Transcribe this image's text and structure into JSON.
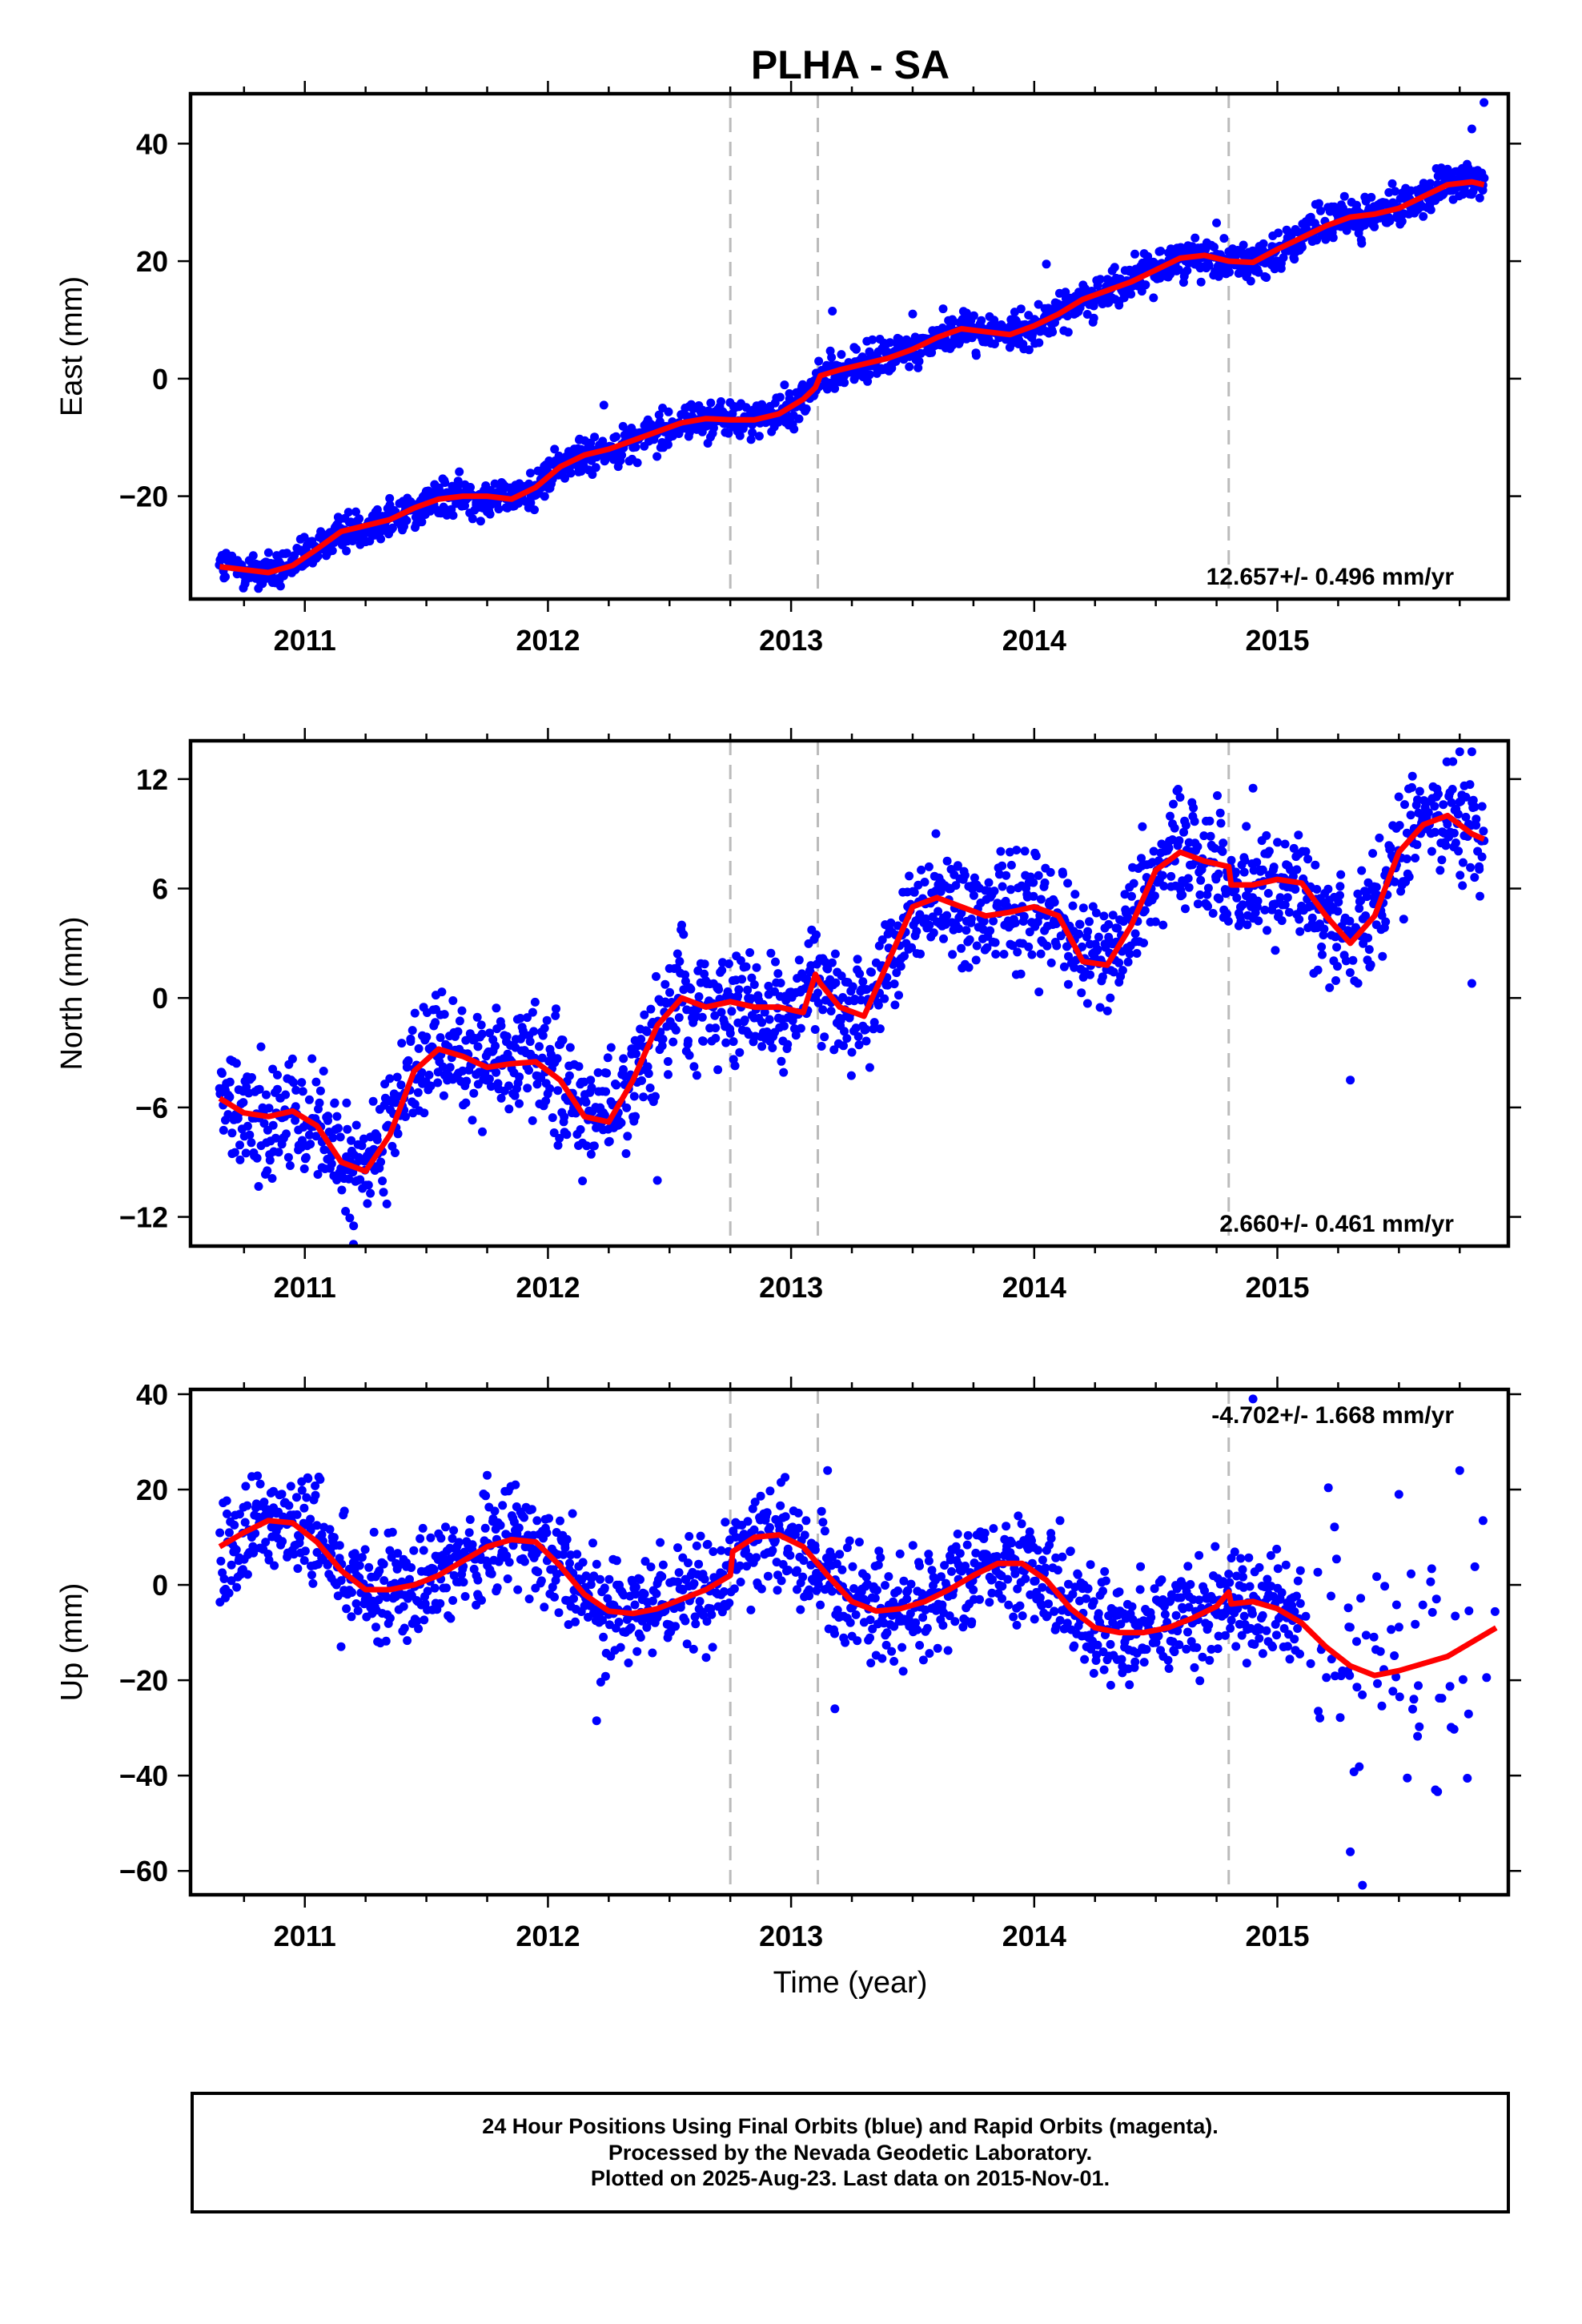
{
  "title": "PLHA - SA",
  "xlabel": "Time (year)",
  "colors": {
    "points": "#0000ff",
    "fit": "#ff0000",
    "events": "#bbbbbb",
    "frame": "#000000"
  },
  "footer": {
    "line1": "24 Hour Positions Using Final Orbits (blue) and Rapid Orbits (magenta).",
    "line2": "Processed by the Nevada Geodetic Laboratory.",
    "line3": "Plotted on 2025-Aug-23. Last data on 2015-Nov-01."
  },
  "chart_data": [
    {
      "type": "scatter",
      "ylabel": "East (mm)",
      "rate_text": "12.657+/- 0.496 mm/yr",
      "xlim": [
        2010.53,
        2015.95
      ],
      "ylim": [
        -37.5,
        48.5
      ],
      "xticks": [
        2011,
        2012,
        2013,
        2014,
        2015
      ],
      "xtick_labels": [
        "2011",
        "2012",
        "2013",
        "2014",
        "2015"
      ],
      "yticks": [
        -20,
        0,
        20,
        40
      ],
      "ytick_labels": [
        "−20",
        "0",
        "20",
        "40"
      ],
      "event_lines": [
        2012.75,
        2013.11,
        2014.8
      ],
      "noise_sd": 1.6,
      "fit": {
        "series": "fit",
        "x": [
          2010.65,
          2010.75,
          2010.85,
          2010.95,
          2011.05,
          2011.15,
          2011.25,
          2011.35,
          2011.45,
          2011.55,
          2011.65,
          2011.75,
          2011.85,
          2011.95,
          2012.05,
          2012.15,
          2012.25,
          2012.35,
          2012.45,
          2012.55,
          2012.65,
          2012.75,
          2012.85,
          2012.95,
          2013.05,
          2013.1,
          2013.12,
          2013.2,
          2013.3,
          2013.4,
          2013.5,
          2013.6,
          2013.7,
          2013.8,
          2013.9,
          2014.0,
          2014.1,
          2014.2,
          2014.3,
          2014.4,
          2014.5,
          2014.6,
          2014.7,
          2014.8,
          2014.9,
          2015.0,
          2015.1,
          2015.2,
          2015.3,
          2015.4,
          2015.5,
          2015.6,
          2015.7,
          2015.8,
          2015.85
        ],
        "y": [
          -32,
          -32.5,
          -33,
          -31.8,
          -29,
          -26,
          -25,
          -24,
          -22,
          -20.5,
          -20,
          -20,
          -20.5,
          -18.5,
          -15,
          -13,
          -12,
          -10.5,
          -9,
          -7.5,
          -6.8,
          -7,
          -7,
          -6,
          -3.5,
          -1.5,
          0.5,
          1.5,
          2.5,
          3.5,
          5,
          7,
          8.5,
          8,
          7.5,
          9,
          11,
          13.5,
          15,
          16.5,
          18.5,
          20.5,
          21,
          20,
          19.8,
          22,
          24,
          26,
          27.5,
          28,
          29,
          31,
          33,
          33.5,
          33
        ]
      },
      "samples": [
        [
          2010.9,
          -35.3
        ],
        [
          2011.35,
          -21.5
        ],
        [
          2012.23,
          -4.5
        ],
        [
          2013.17,
          11.5
        ],
        [
          2013.5,
          11.0
        ],
        [
          2014.05,
          19.5
        ],
        [
          2014.5,
          19.5
        ],
        [
          2014.75,
          26.5
        ],
        [
          2015.8,
          42.5
        ],
        [
          2015.85,
          47.0
        ]
      ]
    },
    {
      "type": "scatter",
      "ylabel": "North (mm)",
      "rate_text": "2.660+/- 0.461 mm/yr",
      "xlim": [
        2010.53,
        2015.95
      ],
      "ylim": [
        -13.6,
        14.1
      ],
      "xticks": [
        2011,
        2012,
        2013,
        2014,
        2015
      ],
      "xtick_labels": [
        "2011",
        "2012",
        "2013",
        "2014",
        "2015"
      ],
      "yticks": [
        -12,
        -6,
        0,
        6,
        12
      ],
      "ytick_labels": [
        "−12",
        "−6",
        "0",
        "6",
        "12"
      ],
      "event_lines": [
        2012.75,
        2013.11,
        2014.8
      ],
      "noise_sd": 1.5,
      "fit": {
        "series": "fit",
        "x": [
          2010.65,
          2010.75,
          2010.85,
          2010.95,
          2011.05,
          2011.15,
          2011.25,
          2011.35,
          2011.45,
          2011.55,
          2011.65,
          2011.75,
          2011.85,
          2011.95,
          2012.05,
          2012.15,
          2012.25,
          2012.35,
          2012.45,
          2012.55,
          2012.65,
          2012.75,
          2012.85,
          2012.95,
          2013.05,
          2013.1,
          2013.12,
          2013.2,
          2013.3,
          2013.4,
          2013.5,
          2013.6,
          2013.7,
          2013.8,
          2013.9,
          2014.0,
          2014.1,
          2014.2,
          2014.3,
          2014.4,
          2014.5,
          2014.6,
          2014.7,
          2014.8,
          2014.81,
          2014.9,
          2015.0,
          2015.1,
          2015.2,
          2015.3,
          2015.4,
          2015.5,
          2015.6,
          2015.7,
          2015.8,
          2015.85
        ],
        "y": [
          -5.5,
          -6.3,
          -6.5,
          -6.2,
          -7,
          -9,
          -9.5,
          -7.5,
          -4,
          -2.8,
          -3.2,
          -3.8,
          -3.6,
          -3.5,
          -4.5,
          -6.5,
          -6.8,
          -4.5,
          -1.5,
          0,
          -0.5,
          -0.2,
          -0.5,
          -0.5,
          -0.8,
          1.3,
          0.8,
          -0.5,
          -1.0,
          2,
          5,
          5.5,
          5,
          4.5,
          4.7,
          5,
          4.5,
          2,
          1.8,
          4,
          7,
          8,
          7.5,
          7.2,
          6.2,
          6.2,
          6.5,
          6.3,
          4.5,
          3,
          4.5,
          8,
          9.5,
          10,
          9,
          8.7
        ]
      },
      "samples": [
        [
          2011.2,
          -13.5
        ],
        [
          2012.45,
          -10.0
        ],
        [
          2012.55,
          4.0
        ],
        [
          2013.9,
          8.0
        ],
        [
          2014.6,
          11.0
        ],
        [
          2014.9,
          11.5
        ],
        [
          2015.3,
          -4.5
        ],
        [
          2015.75,
          13.5
        ],
        [
          2015.8,
          13.5
        ],
        [
          2015.8,
          0.8
        ]
      ]
    },
    {
      "type": "scatter",
      "ylabel": "Up (mm)",
      "rate_text": "-4.702+/- 1.668 mm/yr",
      "xlim": [
        2010.53,
        2015.95
      ],
      "ylim": [
        -65,
        41
      ],
      "xticks": [
        2011,
        2012,
        2013,
        2014,
        2015
      ],
      "xtick_labels": [
        "2011",
        "2012",
        "2013",
        "2014",
        "2015"
      ],
      "yticks": [
        -60,
        -40,
        -20,
        0,
        20,
        40
      ],
      "ytick_labels": [
        "−60",
        "−40",
        "−20",
        "0",
        "20",
        "40"
      ],
      "event_lines": [
        2012.75,
        2013.11,
        2014.8
      ],
      "noise_sd": 5.5,
      "fit": {
        "series": "fit",
        "x": [
          2010.65,
          2010.75,
          2010.85,
          2010.95,
          2011.05,
          2011.15,
          2011.25,
          2011.35,
          2011.45,
          2011.55,
          2011.65,
          2011.75,
          2011.85,
          2011.95,
          2012.05,
          2012.15,
          2012.25,
          2012.35,
          2012.45,
          2012.55,
          2012.65,
          2012.75,
          2012.76,
          2012.85,
          2012.95,
          2013.05,
          2013.15,
          2013.25,
          2013.35,
          2013.45,
          2013.55,
          2013.65,
          2013.75,
          2013.85,
          2013.95,
          2014.05,
          2014.15,
          2014.25,
          2014.35,
          2014.45,
          2014.55,
          2014.65,
          2014.75,
          2014.8,
          2014.81,
          2014.9,
          2015.0,
          2015.1,
          2015.2,
          2015.3,
          2015.4,
          2015.5,
          2015.6,
          2015.7,
          2015.8,
          2015.9
        ],
        "y": [
          8,
          11,
          13.5,
          13,
          9,
          3,
          -1,
          -1,
          0,
          2,
          5,
          8,
          9.5,
          9,
          4,
          -2,
          -5.5,
          -6,
          -5,
          -3,
          -1,
          2,
          7,
          10,
          10.5,
          8,
          2,
          -3.5,
          -5.5,
          -5,
          -3.5,
          -1,
          2,
          4.5,
          4.5,
          1,
          -5,
          -9,
          -10,
          -10,
          -9,
          -7,
          -4.5,
          -1.5,
          -4,
          -3.5,
          -5,
          -8,
          -13,
          -17,
          -19,
          -18,
          -16.5,
          -15,
          -12,
          -9
        ]
      },
      "samples": [
        [
          2011.75,
          23.0
        ],
        [
          2012.2,
          -28.5
        ],
        [
          2013.15,
          24.0
        ],
        [
          2013.18,
          -26.0
        ],
        [
          2014.9,
          39.0
        ],
        [
          2015.3,
          -56.0
        ],
        [
          2015.35,
          -63.0
        ],
        [
          2015.5,
          19.0
        ],
        [
          2015.75,
          24.0
        ],
        [
          2015.65,
          -43.0
        ]
      ]
    }
  ]
}
